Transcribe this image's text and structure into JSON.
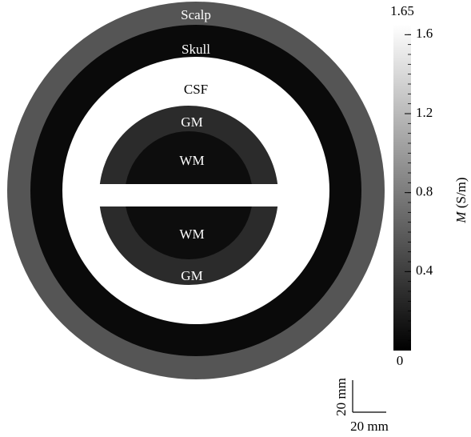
{
  "regions": {
    "scalp": "Scalp",
    "skull": "Skull",
    "csf": "CSF",
    "gm_top": "GM",
    "wm_top": "WM",
    "wm_bottom": "WM",
    "gm_bottom": "GM"
  },
  "colorbar": {
    "min": 0,
    "max": 1.65,
    "ticks": [
      0.4,
      0.8,
      1.2,
      1.6
    ],
    "label_symbol": "M",
    "label_unit": "(S/m)"
  },
  "scale_bar": {
    "vertical": "20 mm",
    "horizontal": "20 mm"
  }
}
